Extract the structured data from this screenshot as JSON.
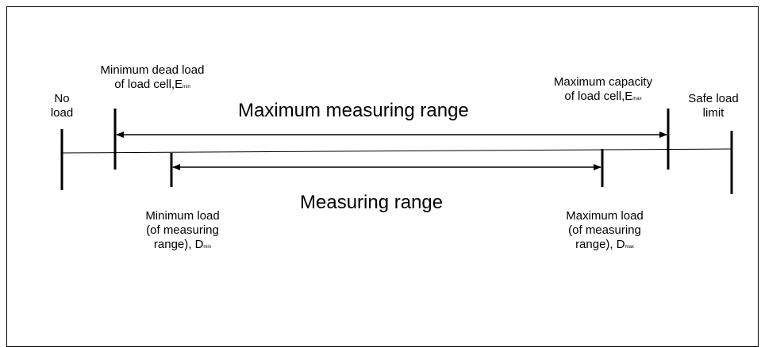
{
  "labels": {
    "no_load": [
      "No",
      "load"
    ],
    "min_dead_load": {
      "line1": "Minimum dead load",
      "line2_prefix": "of load cell,E",
      "line2_sub": "min"
    },
    "max_capacity": {
      "line1": "Maximum capacity",
      "line2_prefix": "of load cell,E",
      "line2_sub": "max"
    },
    "safe_load_limit": [
      "Safe load",
      "limit"
    ],
    "maximum_measuring_range": "Maximum measuring range",
    "measuring_range": "Measuring range",
    "min_load": {
      "line1": "Minimum load",
      "line2": "(of measuring",
      "line3_prefix": "range), D",
      "line3_sub": "min"
    },
    "max_load": {
      "line1": "Maximum load",
      "line2": "(of measuring",
      "line3_prefix": "range), D",
      "line3_sub": "max"
    }
  }
}
